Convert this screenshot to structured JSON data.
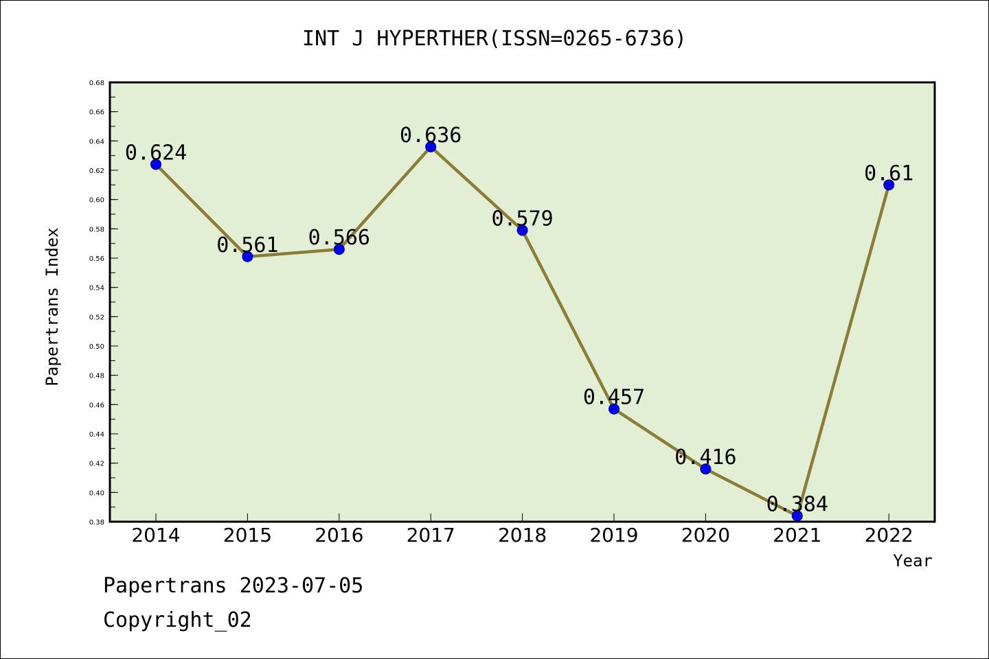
{
  "chart_data": {
    "type": "line",
    "title": "INT J HYPERTHER(ISSN=0265-6736)",
    "xlabel": "Year",
    "ylabel": "Papertrans Index",
    "categories": [
      "2014",
      "2015",
      "2016",
      "2017",
      "2018",
      "2019",
      "2020",
      "2021",
      "2022"
    ],
    "values": [
      0.624,
      0.561,
      0.566,
      0.636,
      0.579,
      0.457,
      0.416,
      0.384,
      0.61
    ],
    "data_labels": [
      "0.624",
      "0.561",
      "0.566",
      "0.636",
      "0.579",
      "0.457",
      "0.416",
      "0.384",
      "0.61"
    ],
    "ylim": [
      0.38,
      0.68
    ],
    "yticks": [
      "0.38",
      "0.40",
      "0.42",
      "0.44",
      "0.46",
      "0.48",
      "0.50",
      "0.52",
      "0.54",
      "0.56",
      "0.58",
      "0.60",
      "0.62",
      "0.64",
      "0.66",
      "0.68"
    ],
    "grid": false,
    "colors": {
      "plot_background": "#e2efd4",
      "line": "#8b7d36",
      "marker": "#0000ee",
      "marker_edge": "#00008b"
    }
  },
  "footer": {
    "line1": "Papertrans 2023-07-05",
    "line2": "Copyright_02"
  }
}
